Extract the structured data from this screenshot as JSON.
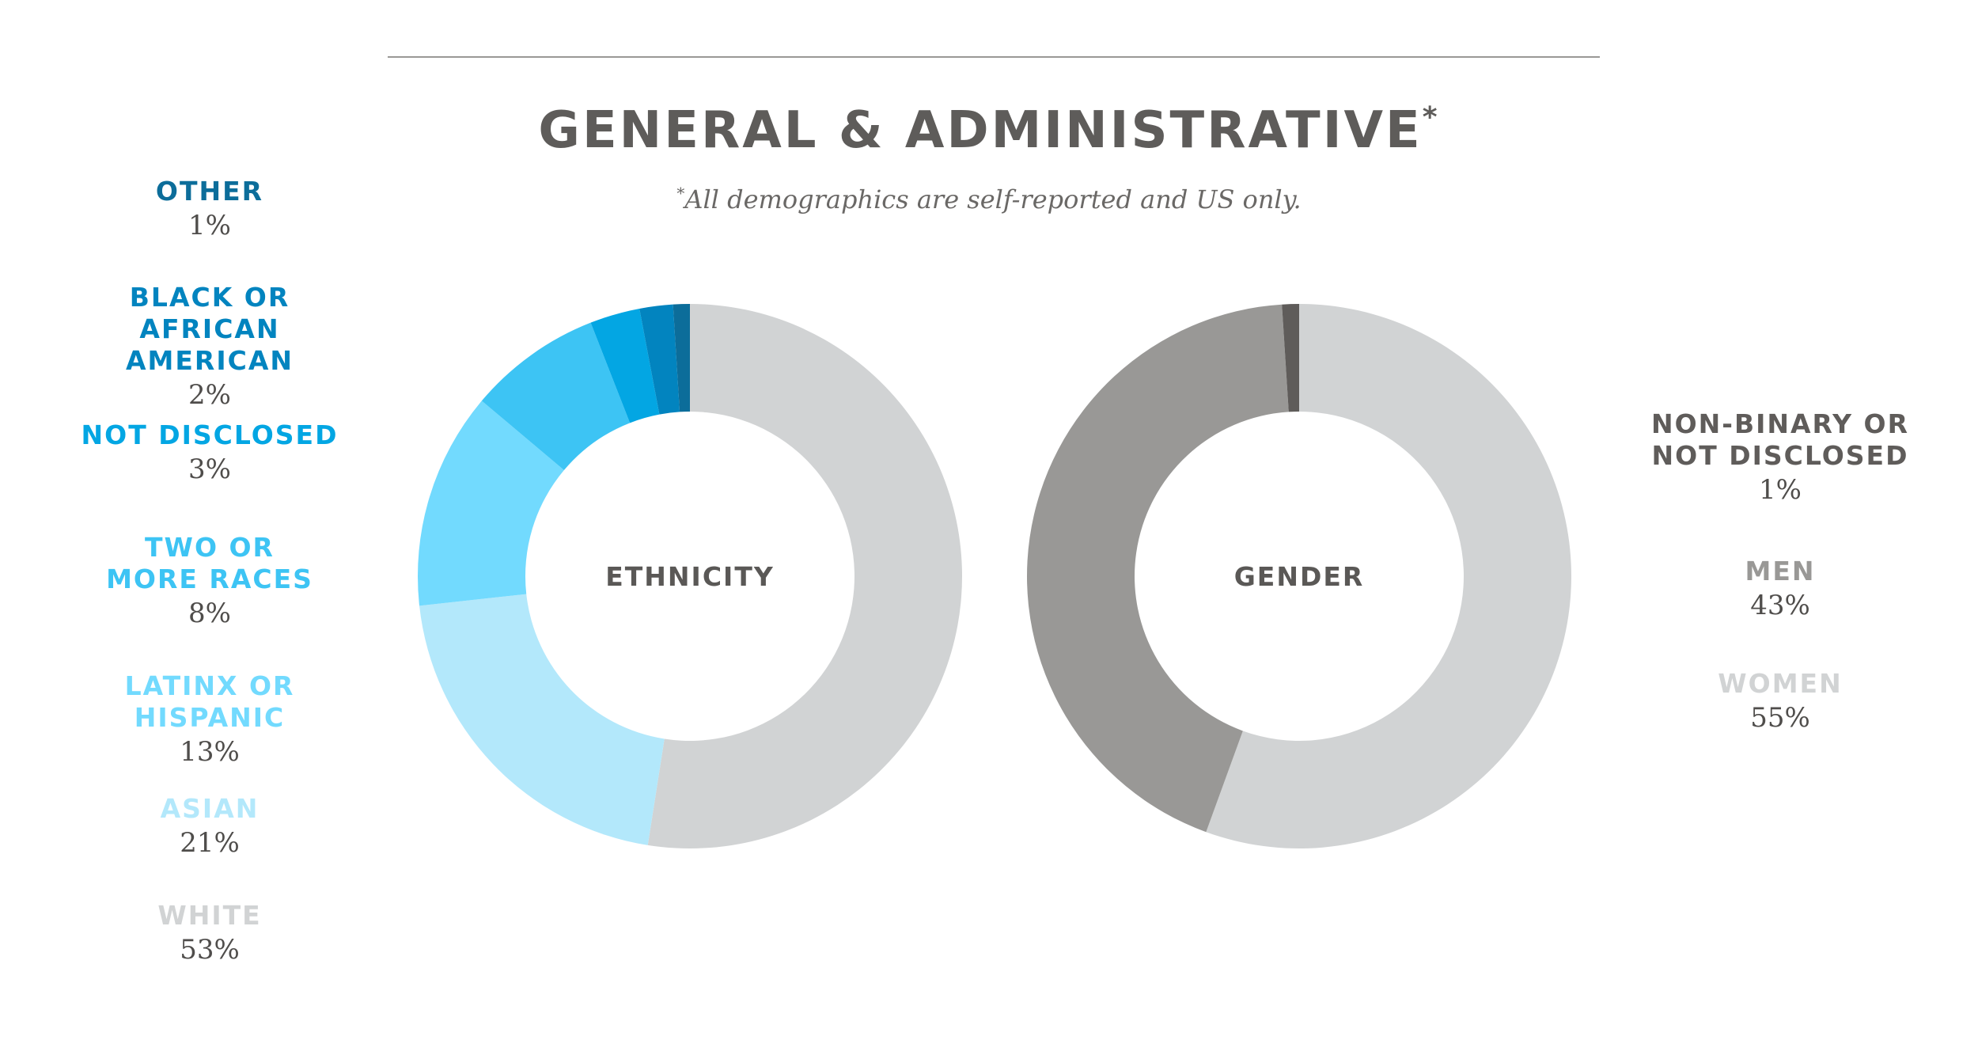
{
  "title": "GENERAL & ADMINISTRATIVE",
  "title_mark": "*",
  "subtitle_mark": "*",
  "subtitle": "All demographics are self-reported and US only.",
  "chart_data": [
    {
      "type": "pie",
      "center_label": "ETHNICITY",
      "categories": [
        "WHITE",
        "ASIAN",
        "LATINX OR HISPANIC",
        "TWO OR MORE RACES",
        "NOT DISCLOSED",
        "BLACK OR AFRICAN AMERICAN",
        "OTHER"
      ],
      "values": [
        53,
        21,
        13,
        8,
        3,
        2,
        1
      ],
      "value_labels": [
        "53%",
        "21%",
        "13%",
        "8%",
        "3%",
        "2%",
        "1%"
      ],
      "colors": [
        "#d1d3d4",
        "#b3e8fb",
        "#72dafe",
        "#3dc4f4",
        "#03a6e3",
        "#0284bf",
        "#0c6d9a"
      ]
    },
    {
      "type": "pie",
      "center_label": "GENDER",
      "categories": [
        "WOMEN",
        "MEN",
        "NON-BINARY OR NOT DISCLOSED"
      ],
      "values": [
        55,
        43,
        1
      ],
      "value_labels": [
        "55%",
        "43%",
        "1%"
      ],
      "colors": [
        "#d1d3d4",
        "#999896",
        "#5f5c5a"
      ]
    }
  ]
}
